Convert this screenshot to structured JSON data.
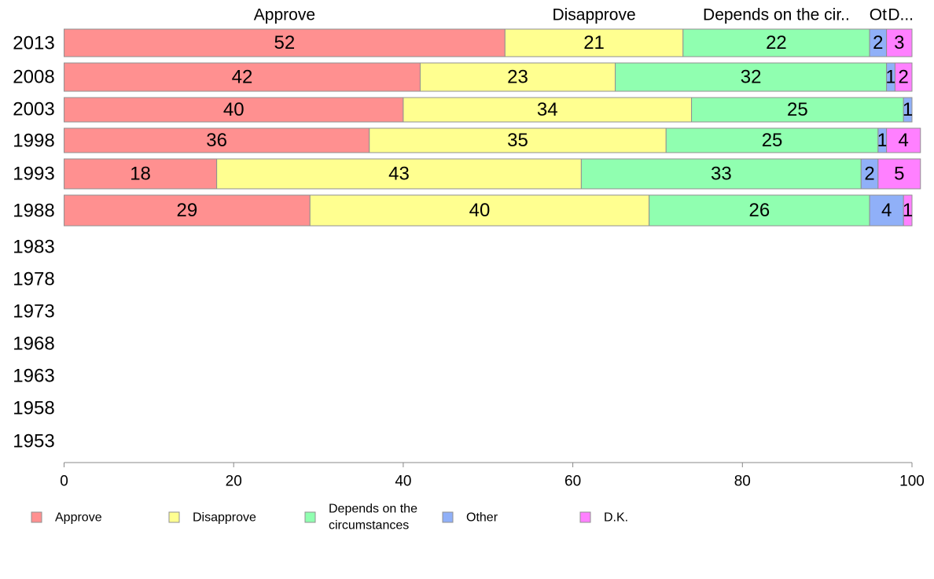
{
  "chart_data": {
    "type": "bar",
    "orientation": "horizontal",
    "stacked": true,
    "years": [
      "2013",
      "2008",
      "2003",
      "1998",
      "1993",
      "1988",
      "1983",
      "1978",
      "1973",
      "1968",
      "1963",
      "1958",
      "1953"
    ],
    "series": [
      {
        "name": "Approve",
        "color": "#ff9090",
        "values": [
          52,
          42,
          40,
          36,
          18,
          29,
          null,
          null,
          null,
          null,
          null,
          null,
          null
        ]
      },
      {
        "name": "Disapprove",
        "color": "#ffff90",
        "values": [
          21,
          23,
          34,
          35,
          43,
          40,
          null,
          null,
          null,
          null,
          null,
          null,
          null
        ]
      },
      {
        "name": "Depends on the circumstances",
        "color": "#90ffb0",
        "values": [
          22,
          32,
          25,
          25,
          33,
          26,
          null,
          null,
          null,
          null,
          null,
          null,
          null
        ]
      },
      {
        "name": "Other",
        "color": "#90b0f8",
        "values": [
          2,
          1,
          1,
          1,
          2,
          4,
          null,
          null,
          null,
          null,
          null,
          null,
          null
        ]
      },
      {
        "name": "D.K.",
        "color": "#ff80ff",
        "values": [
          3,
          2,
          0,
          4,
          5,
          1,
          null,
          null,
          null,
          null,
          null,
          null,
          null
        ]
      }
    ],
    "top_labels": [
      "Approve",
      "Disapprove",
      "Depends on the cir..",
      "Ot",
      "D..."
    ],
    "legend_labels": [
      [
        "Approve"
      ],
      [
        "Disapprove"
      ],
      [
        "Depends on the",
        "circumstances"
      ],
      [
        "Other"
      ],
      [
        "D.K."
      ]
    ],
    "xlim": [
      0,
      100
    ],
    "xticks": [
      0,
      20,
      40,
      60,
      80,
      100
    ],
    "grid": false,
    "legend_position": "bottom"
  }
}
